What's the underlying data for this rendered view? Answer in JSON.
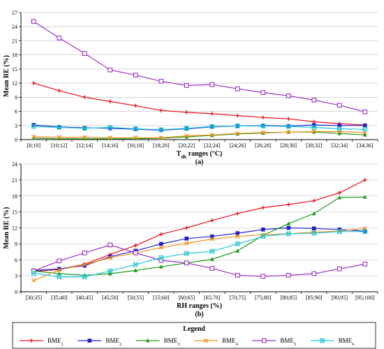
{
  "colors": {
    "BME1": "#e8101b",
    "BME2": "#1f1fcf",
    "BME3": "#1a9a1a",
    "BME4": "#f0901c",
    "BME5": "#9b2fc9",
    "BME6": "#22c8d8",
    "grid": "#bfbfbf",
    "axis": "#000000"
  },
  "legend": {
    "title": "Legend",
    "entries": [
      {
        "key": "BME1",
        "base": "BME",
        "sub": "1",
        "marker": "plus"
      },
      {
        "key": "BME2",
        "base": "BME",
        "sub": "2",
        "marker": "square"
      },
      {
        "key": "BME3",
        "base": "BME",
        "sub": "3",
        "marker": "triangle"
      },
      {
        "key": "BME4",
        "base": "BME",
        "sub": "4",
        "marker": "x"
      },
      {
        "key": "BME5",
        "base": "BME",
        "sub": "5",
        "marker": "open-square"
      },
      {
        "key": "BME6",
        "base": "BME",
        "sub": "6",
        "marker": "open-square-cross"
      }
    ]
  },
  "chart_data": [
    {
      "type": "line",
      "caption": "(a)",
      "xlabel_parts": {
        "pre": "T",
        "sub": "db",
        "post": " ranges (°C)"
      },
      "ylabel": "Mean RE (%)",
      "ylim": [
        0,
        27
      ],
      "yticks": [
        0,
        3,
        6,
        9,
        12,
        15,
        18,
        21,
        24,
        27
      ],
      "grid": true,
      "categories": [
        "[8;10]",
        "[10;12]",
        "[12;14]",
        "[14;16]",
        "[16;18]",
        "[18;20]",
        "[20;22]",
        "[22;24]",
        "[24;26]",
        "[26;28]",
        "[28;30]",
        "[30;32]",
        "[32;34]",
        "[34;36]"
      ],
      "series": [
        {
          "key": "BME1",
          "values": [
            12.0,
            10.4,
            9.0,
            8.1,
            7.2,
            6.2,
            5.8,
            5.5,
            5.1,
            4.7,
            4.4,
            3.8,
            3.4,
            3.1
          ]
        },
        {
          "key": "BME2",
          "values": [
            3.1,
            2.7,
            2.5,
            2.4,
            2.2,
            2.0,
            2.3,
            2.7,
            2.9,
            3.0,
            2.9,
            3.1,
            3.0,
            3.0
          ]
        },
        {
          "key": "BME3",
          "values": [
            0.3,
            0.2,
            0.2,
            0.2,
            0.2,
            0.3,
            0.6,
            0.9,
            1.2,
            1.4,
            1.6,
            1.6,
            1.3,
            1.0
          ]
        },
        {
          "key": "BME4",
          "values": [
            0.6,
            0.5,
            0.5,
            0.4,
            0.4,
            0.4,
            0.8,
            1.0,
            1.3,
            1.5,
            1.6,
            1.7,
            1.7,
            1.5
          ]
        },
        {
          "key": "BME5",
          "values": [
            25.1,
            21.6,
            18.3,
            14.8,
            13.7,
            12.4,
            11.5,
            11.7,
            10.8,
            10.0,
            9.3,
            8.4,
            7.3,
            5.9
          ]
        },
        {
          "key": "BME6",
          "values": [
            2.8,
            2.6,
            2.4,
            2.6,
            2.3,
            2.1,
            2.4,
            2.8,
            2.9,
            2.9,
            2.8,
            2.6,
            2.3,
            2.2
          ]
        }
      ]
    },
    {
      "type": "line",
      "caption": "(b)",
      "xlabel": "RH ranges (%)",
      "ylabel": "Mean RE (%)",
      "ylim": [
        0,
        24
      ],
      "yticks": [
        0,
        3,
        6,
        9,
        12,
        15,
        18,
        21,
        24
      ],
      "grid": true,
      "categories": [
        "[30;35]",
        "[35;40]",
        "[40;45]",
        "[45;50]",
        "[50;55]",
        "[55;60]",
        "[60;65]",
        "[65;70]",
        "[70;75]",
        "[75;80]",
        "[80;85]",
        "[85;90]",
        "[90;95]",
        "[95;100]"
      ],
      "series": [
        {
          "key": "BME1",
          "values": [
            3.8,
            4.2,
            5.2,
            7.0,
            8.7,
            10.8,
            12.0,
            13.4,
            14.7,
            15.8,
            16.4,
            17.1,
            18.6,
            21.0
          ]
        },
        {
          "key": "BME2",
          "values": [
            4.0,
            4.3,
            4.9,
            6.6,
            7.7,
            9.0,
            10.0,
            10.4,
            11.0,
            11.7,
            12.0,
            11.9,
            11.7,
            11.4
          ]
        },
        {
          "key": "BME3",
          "values": [
            3.9,
            3.4,
            3.1,
            3.4,
            4.0,
            4.7,
            5.4,
            6.1,
            7.7,
            10.6,
            12.8,
            14.7,
            17.7,
            17.8
          ]
        },
        {
          "key": "BME4",
          "values": [
            2.1,
            4.1,
            5.1,
            6.4,
            7.3,
            8.3,
            9.1,
            9.9,
            10.4,
            10.7,
            10.9,
            11.2,
            11.4,
            11.9
          ]
        },
        {
          "key": "BME5",
          "values": [
            3.9,
            5.8,
            7.3,
            8.8,
            7.3,
            5.9,
            5.4,
            4.4,
            3.1,
            2.9,
            3.1,
            3.4,
            4.3,
            5.2
          ]
        },
        {
          "key": "BME6",
          "values": [
            3.5,
            2.8,
            2.8,
            3.9,
            5.1,
            6.4,
            7.2,
            7.6,
            9.0,
            10.4,
            10.9,
            11.0,
            11.3,
            11.3
          ]
        }
      ]
    }
  ]
}
